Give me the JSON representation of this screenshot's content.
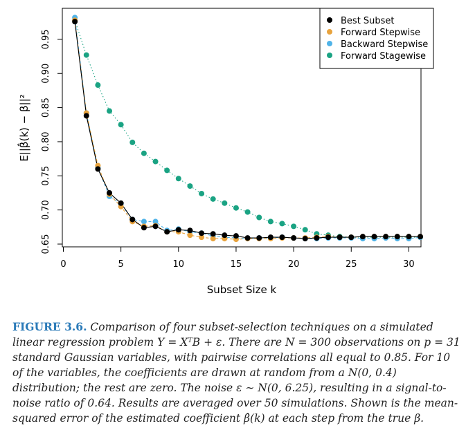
{
  "chart_data": {
    "type": "scatter",
    "xlabel": "Subset Size k",
    "ylabel": "E||β̂(k) − β||²",
    "xlim": [
      0,
      31
    ],
    "ylim": [
      0.65,
      0.98
    ],
    "xticks": [
      "0",
      "5",
      "10",
      "15",
      "20",
      "25",
      "30"
    ],
    "yticks": [
      "0.65",
      "0.70",
      "0.75",
      "0.80",
      "0.85",
      "0.90",
      "0.95"
    ],
    "legend_position": "top-right",
    "series": [
      {
        "name": "Forward Stagewise",
        "color": "#1aa383",
        "line_style": "dotted",
        "x": [
          1,
          2,
          3,
          4,
          5,
          6,
          7,
          8,
          9,
          10,
          11,
          12,
          13,
          14,
          15,
          16,
          17,
          18,
          19,
          20,
          21,
          22,
          23,
          24,
          25,
          26,
          27,
          28,
          29,
          30,
          31
        ],
        "y": [
          0.978,
          0.927,
          0.883,
          0.845,
          0.825,
          0.799,
          0.783,
          0.771,
          0.758,
          0.746,
          0.735,
          0.724,
          0.716,
          0.71,
          0.703,
          0.697,
          0.689,
          0.683,
          0.68,
          0.676,
          0.671,
          0.665,
          0.663,
          0.661,
          0.66,
          0.66,
          0.66,
          0.66,
          0.66,
          0.66,
          0.66
        ]
      },
      {
        "name": "Backward Stepwise",
        "color": "#4fb3e8",
        "line_style": "dashed",
        "x": [
          1,
          2,
          3,
          4,
          5,
          6,
          7,
          8,
          9,
          10,
          11,
          12,
          13,
          14,
          15,
          16,
          17,
          18,
          19,
          20,
          21,
          22,
          23,
          24,
          25,
          26,
          27,
          28,
          29,
          30,
          31
        ],
        "y": [
          0.982,
          0.842,
          0.762,
          0.72,
          0.709,
          0.686,
          0.683,
          0.683,
          0.67,
          0.672,
          0.668,
          0.666,
          0.662,
          0.66,
          0.659,
          0.658,
          0.659,
          0.659,
          0.66,
          0.659,
          0.658,
          0.658,
          0.659,
          0.659,
          0.659,
          0.658,
          0.658,
          0.659,
          0.658,
          0.658,
          0.66
        ]
      },
      {
        "name": "Forward Stepwise",
        "color": "#e8a33d",
        "line_style": "dashed",
        "x": [
          1,
          2,
          3,
          4,
          5,
          6,
          7,
          8,
          9,
          10,
          11,
          12,
          13,
          14,
          15,
          16,
          17,
          18,
          19,
          20,
          21,
          22,
          23,
          24,
          25,
          26,
          27,
          28,
          29,
          30,
          31
        ],
        "y": [
          0.978,
          0.842,
          0.765,
          0.723,
          0.705,
          0.683,
          0.676,
          0.677,
          0.668,
          0.668,
          0.663,
          0.66,
          0.658,
          0.658,
          0.657,
          0.658,
          0.658,
          0.658,
          0.659,
          0.659,
          0.659,
          0.66,
          0.661,
          0.66,
          0.66,
          0.661,
          0.661,
          0.661,
          0.661,
          0.661,
          0.661
        ]
      },
      {
        "name": "Best Subset",
        "color": "#000000",
        "line_style": "solid",
        "x": [
          1,
          2,
          3,
          4,
          5,
          6,
          7,
          8,
          9,
          10,
          11,
          12,
          13,
          14,
          15,
          16,
          17,
          18,
          19,
          20,
          21,
          22,
          23,
          24,
          25,
          26,
          27,
          28,
          29,
          30,
          31
        ],
        "y": [
          0.976,
          0.838,
          0.76,
          0.725,
          0.71,
          0.686,
          0.674,
          0.676,
          0.668,
          0.671,
          0.67,
          0.666,
          0.665,
          0.663,
          0.662,
          0.659,
          0.659,
          0.66,
          0.66,
          0.659,
          0.658,
          0.659,
          0.66,
          0.66,
          0.66,
          0.661,
          0.661,
          0.661,
          0.661,
          0.661,
          0.661
        ]
      }
    ],
    "legend_order": [
      "Best Subset",
      "Forward Stepwise",
      "Backward Stepwise",
      "Forward Stagewise"
    ]
  },
  "caption": {
    "label": "FIGURE 3.6.",
    "text": "Comparison of four subset-selection techniques on a simulated linear regression problem Y = XᵀB + ε. There are N = 300 observations on p = 31 standard Gaussian variables, with pairwise correlations all equal to 0.85. For 10 of the variables, the coefficients are drawn at random from a N(0, 0.4) distribution; the rest are zero. The noise ε ∼ N(0, 6.25), resulting in a signal-to-noise ratio of 0.64. Results are averaged over 50 simulations. Shown is the mean-squared error of the estimated coefficient β̂(k) at each step from the true β."
  }
}
